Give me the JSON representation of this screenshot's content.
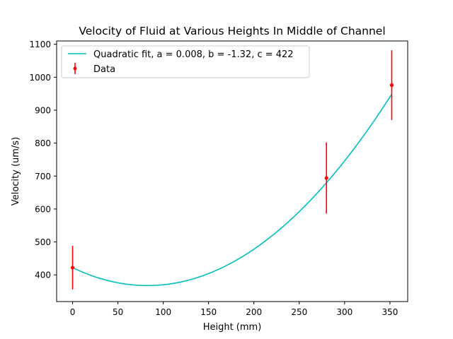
{
  "chart_data": {
    "type": "scatter",
    "title": "Velocity of Fluid at Various Heights In Middle of Channel",
    "xlabel": "Height (mm)",
    "ylabel": "Velocity (um/s)",
    "xlim": [
      -17.6,
      369.6
    ],
    "ylim": [
      319,
      1110
    ],
    "xticks": [
      0,
      50,
      100,
      150,
      200,
      250,
      300,
      350
    ],
    "yticks": [
      400,
      500,
      600,
      700,
      800,
      900,
      1000,
      1100
    ],
    "grid": false,
    "legend_position": "upper-left",
    "series": [
      {
        "name": "Quadratic fit, a = 0.008, b = -1.32, c = 422",
        "kind": "line",
        "color": "#00bfbf",
        "fit": {
          "a": 0.008,
          "b": -1.32,
          "c": 422
        },
        "x_range": [
          0,
          352
        ]
      },
      {
        "name": "Data",
        "kind": "errorbar",
        "color": "#ff0000",
        "points": [
          {
            "x": 0,
            "y": 422,
            "yerr": 66
          },
          {
            "x": 280,
            "y": 694,
            "yerr": 108
          },
          {
            "x": 352,
            "y": 976,
            "yerr": 106
          }
        ]
      }
    ]
  }
}
